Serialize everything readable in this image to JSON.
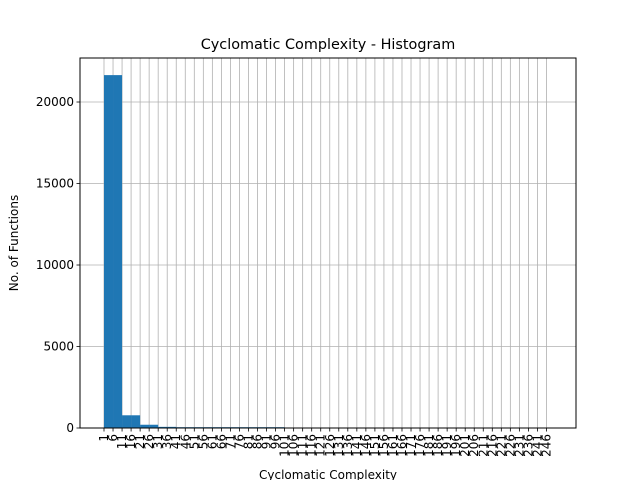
{
  "chart_data": {
    "type": "bar",
    "title": "Cyclomatic Complexity - Histogram",
    "xlabel": "Cyclomatic Complexity",
    "ylabel": "No. of Functions",
    "ylim": [
      0,
      22700
    ],
    "yticks": [
      0,
      5000,
      10000,
      15000,
      20000
    ],
    "grid": true,
    "bar_color": "#1f77b4",
    "bin_width": 5,
    "categories": [
      "1",
      "6",
      "11",
      "16",
      "21",
      "26",
      "31",
      "36",
      "41",
      "46",
      "51",
      "56",
      "61",
      "66",
      "71",
      "76",
      "81",
      "86",
      "91",
      "96",
      "101",
      "106",
      "111",
      "116",
      "121",
      "126",
      "131",
      "136",
      "141",
      "146",
      "151",
      "156",
      "161",
      "166",
      "171",
      "176",
      "181",
      "186",
      "191",
      "196",
      "201",
      "206",
      "211",
      "216",
      "221",
      "226",
      "231",
      "236",
      "241",
      "246"
    ],
    "values": [
      21650,
      21650,
      780,
      780,
      200,
      200,
      70,
      70,
      25,
      25,
      8,
      8,
      4,
      4,
      2,
      2,
      1,
      1,
      1,
      1,
      0,
      0,
      0,
      0,
      0,
      0,
      0,
      0,
      0,
      0,
      0,
      0,
      0,
      0,
      0,
      0,
      0,
      0,
      0,
      0,
      0,
      0,
      0,
      0,
      0,
      0,
      0,
      0,
      0,
      0
    ]
  }
}
